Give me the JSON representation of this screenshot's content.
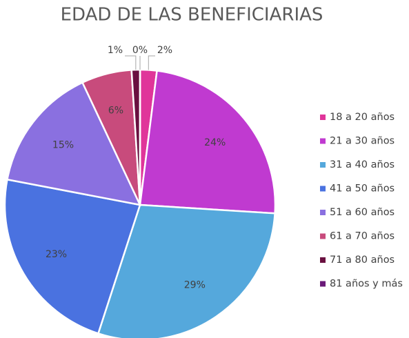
{
  "chart_data": {
    "type": "pie",
    "title": "EDAD DE LAS BENEFICIARIAS",
    "categories": [
      "18 a 20 años",
      "21 a 30 años",
      "31 a 40 años",
      "41 a 50 años",
      "51 a 60 años",
      "61 a 70 años",
      "71 a 80 años",
      "81 años y más"
    ],
    "values": [
      2,
      24,
      29,
      23,
      15,
      6,
      1,
      0
    ],
    "value_labels": [
      "2%",
      "24%",
      "29%",
      "23%",
      "15%",
      "6%",
      "1%",
      "0%"
    ],
    "colors": [
      "#e0359a",
      "#c03ad0",
      "#55a8dc",
      "#4a72e0",
      "#8a70e0",
      "#c84b7c",
      "#6a1040",
      "#6a1a78"
    ],
    "legend": "right"
  }
}
